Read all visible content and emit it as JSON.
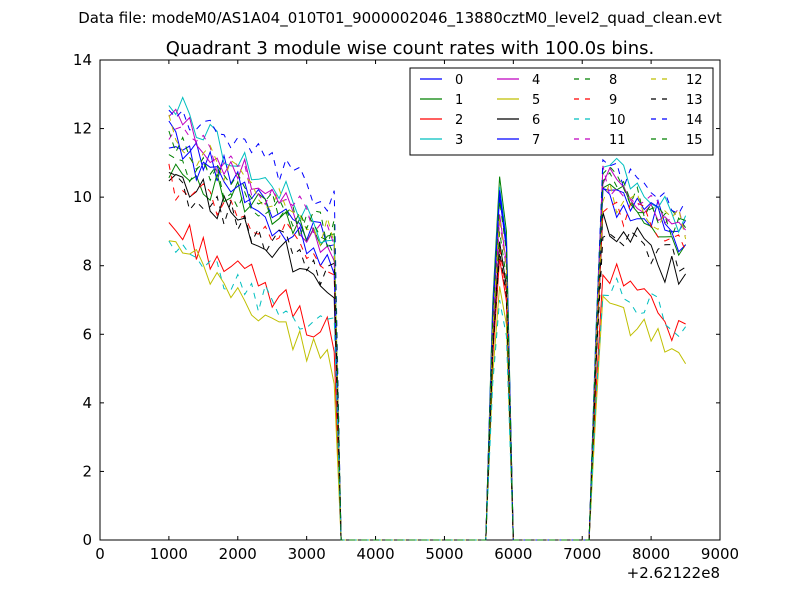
{
  "figure": {
    "suptitle": "Data file: modeM0/AS1A04_010T01_9000002046_13880cztM0_level2_quad_clean.evt"
  },
  "chart_data": {
    "type": "line",
    "title": "Quadrant 3 module wise count rates with 100.0s bins.",
    "xlabel": "",
    "ylabel": "",
    "x_offset_label": "+2.62122e8",
    "xlim": [
      0,
      9000
    ],
    "ylim": [
      0,
      14
    ],
    "xticks": [
      0,
      1000,
      2000,
      3000,
      4000,
      5000,
      6000,
      7000,
      8000,
      9000
    ],
    "yticks": [
      0,
      2,
      4,
      6,
      8,
      10,
      12,
      14
    ],
    "grid": false,
    "legend_position": "top-right",
    "legend_columns": 4,
    "x": [
      1000,
      1100,
      1200,
      1300,
      1400,
      1500,
      1600,
      1700,
      1800,
      1900,
      2000,
      2100,
      2200,
      2300,
      2400,
      2500,
      2600,
      2700,
      2800,
      2900,
      3000,
      3100,
      3200,
      3300,
      3400,
      3500,
      3600,
      3700,
      3800,
      3900,
      4000,
      4100,
      4200,
      4300,
      4400,
      4500,
      4600,
      4700,
      4800,
      4900,
      5000,
      5100,
      5200,
      5300,
      5400,
      5500,
      5600,
      5700,
      5800,
      5900,
      6000,
      6100,
      6200,
      6300,
      6400,
      6500,
      6600,
      6700,
      6800,
      6900,
      7000,
      7100,
      7200,
      7300,
      7400,
      7500,
      7600,
      7700,
      7800,
      7900,
      8000,
      8100,
      8200,
      8300,
      8400,
      8500
    ],
    "segments": [
      [
        0,
        25
      ],
      [
        46,
        50
      ],
      [
        60,
        75
      ]
    ],
    "series": [
      {
        "name": "0",
        "color": "#0000ff",
        "dash": "solid",
        "base_a": 11.8,
        "base_b": 8.6,
        "burst_c": 10.0,
        "base_c": 10.0,
        "base_d": 9.3
      },
      {
        "name": "1",
        "color": "#008000",
        "dash": "solid",
        "base_a": 11.0,
        "base_b": 8.5,
        "burst_c": 10.6,
        "base_c": 10.4,
        "base_d": 8.5
      },
      {
        "name": "2",
        "color": "#ff0000",
        "dash": "solid",
        "base_a": 9.2,
        "base_b": 5.9,
        "burst_c": 8.2,
        "base_c": 7.9,
        "base_d": 6.0
      },
      {
        "name": "3",
        "color": "#00bfbf",
        "dash": "solid",
        "base_a": 12.8,
        "base_b": 8.8,
        "burst_c": 10.3,
        "base_c": 11.2,
        "base_d": 9.1
      },
      {
        "name": "4",
        "color": "#bf00bf",
        "dash": "solid",
        "base_a": 12.4,
        "base_b": 8.5,
        "burst_c": 9.5,
        "base_c": 10.5,
        "base_d": 8.8
      },
      {
        "name": "5",
        "color": "#bfbf00",
        "dash": "solid",
        "base_a": 8.6,
        "base_b": 5.0,
        "burst_c": 7.4,
        "base_c": 6.9,
        "base_d": 5.3
      },
      {
        "name": "6",
        "color": "#000000",
        "dash": "solid",
        "base_a": 10.8,
        "base_b": 7.4,
        "burst_c": 8.7,
        "base_c": 9.4,
        "base_d": 7.5
      },
      {
        "name": "7",
        "color": "#0000ff",
        "dash": "solid",
        "base_a": 11.6,
        "base_b": 8.0,
        "burst_c": 10.2,
        "base_c": 10.3,
        "base_d": 8.7
      },
      {
        "name": "8",
        "color": "#008000",
        "dash": "dashed",
        "base_a": 11.2,
        "base_b": 8.7,
        "burst_c": 9.0,
        "base_c": 10.7,
        "base_d": 9.0
      },
      {
        "name": "9",
        "color": "#ff0000",
        "dash": "dashed",
        "base_a": 10.5,
        "base_b": 8.2,
        "burst_c": 8.5,
        "base_c": 9.9,
        "base_d": 8.6
      },
      {
        "name": "10",
        "color": "#00bfbf",
        "dash": "dashed",
        "base_a": 8.4,
        "base_b": 6.0,
        "burst_c": 7.0,
        "base_c": 7.5,
        "base_d": 6.3
      },
      {
        "name": "11",
        "color": "#bf00bf",
        "dash": "dashed",
        "base_a": 12.0,
        "base_b": 9.0,
        "burst_c": 9.3,
        "base_c": 10.5,
        "base_d": 9.1
      },
      {
        "name": "12",
        "color": "#bfbf00",
        "dash": "dashed",
        "base_a": 11.9,
        "base_b": 8.8,
        "burst_c": 9.4,
        "base_c": 10.0,
        "base_d": 9.2
      },
      {
        "name": "13",
        "color": "#000000",
        "dash": "dashed",
        "base_a": 10.4,
        "base_b": 7.7,
        "burst_c": 8.4,
        "base_c": 9.3,
        "base_d": 8.0
      },
      {
        "name": "14",
        "color": "#0000ff",
        "dash": "dashed",
        "base_a": 12.6,
        "base_b": 9.8,
        "burst_c": 10.1,
        "base_c": 10.9,
        "base_d": 9.9
      },
      {
        "name": "15",
        "color": "#008000",
        "dash": "dashed",
        "base_a": 11.5,
        "base_b": 8.9,
        "burst_c": 9.9,
        "base_c": 10.6,
        "base_d": 8.9
      }
    ]
  }
}
